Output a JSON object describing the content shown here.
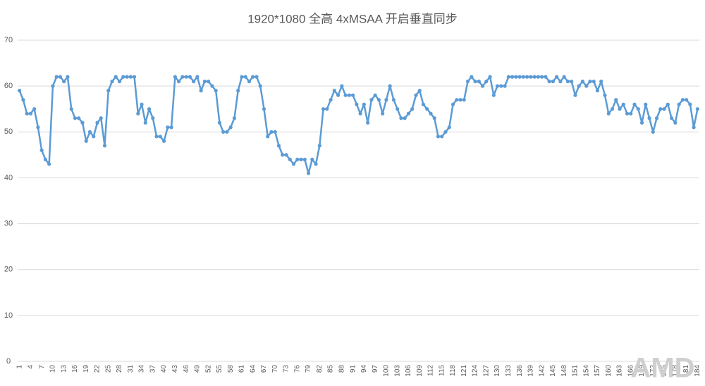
{
  "chart_data": {
    "type": "line",
    "title": "1920*1080 全高 4xMSAA 开启垂直同步",
    "watermark": "AMD",
    "categories": [
      1,
      null,
      null,
      4,
      null,
      null,
      7,
      null,
      null,
      10,
      null,
      null,
      13,
      null,
      null,
      16,
      null,
      null,
      19,
      null,
      null,
      22,
      null,
      null,
      25,
      null,
      null,
      28,
      null,
      null,
      31,
      null,
      null,
      34,
      null,
      null,
      37,
      null,
      null,
      40,
      null,
      null,
      43,
      null,
      null,
      46,
      null,
      null,
      49,
      null,
      null,
      52,
      null,
      null,
      55,
      null,
      null,
      58,
      null,
      null,
      61,
      null,
      null,
      64,
      null,
      null,
      67,
      null,
      null,
      70,
      null,
      null,
      73,
      null,
      null,
      76,
      null,
      null,
      79,
      null,
      null,
      82,
      null,
      null,
      85,
      null,
      null,
      88,
      null,
      null,
      91,
      null,
      null,
      94,
      null,
      null,
      97,
      null,
      null,
      100,
      null,
      null,
      103,
      null,
      null,
      106,
      null,
      null,
      109,
      null,
      null,
      112,
      null,
      null,
      115,
      null,
      null,
      118,
      null,
      null,
      121,
      null,
      null,
      124,
      null,
      null,
      127,
      null,
      null,
      130,
      null,
      null,
      133,
      null,
      null,
      136,
      null,
      null,
      139,
      null,
      null,
      142,
      null,
      null,
      145,
      null,
      null,
      148,
      null,
      null,
      151,
      null,
      null,
      154,
      null,
      null,
      157,
      null,
      null,
      160,
      null,
      null,
      163,
      null,
      null,
      166,
      null,
      null,
      169,
      null,
      null,
      172,
      null,
      null,
      175,
      null,
      null,
      178,
      null,
      null,
      181,
      null,
      null,
      184
    ],
    "values": [
      59,
      57,
      54,
      54,
      55,
      51,
      46,
      44,
      43,
      60,
      62,
      62,
      61,
      62,
      55,
      53,
      53,
      52,
      48,
      50,
      49,
      52,
      53,
      47,
      59,
      61,
      62,
      61,
      62,
      62,
      62,
      62,
      54,
      56,
      52,
      55,
      53,
      49,
      49,
      48,
      51,
      51,
      62,
      61,
      62,
      62,
      62,
      61,
      62,
      59,
      61,
      61,
      60,
      59,
      52,
      50,
      50,
      51,
      53,
      59,
      62,
      62,
      61,
      62,
      62,
      60,
      55,
      49,
      50,
      50,
      47,
      45,
      45,
      44,
      43,
      44,
      44,
      44,
      41,
      44,
      43,
      47,
      55,
      55,
      57,
      59,
      58,
      60,
      58,
      58,
      58,
      56,
      54,
      56,
      52,
      57,
      58,
      57,
      54,
      57,
      60,
      57,
      55,
      53,
      53,
      54,
      55,
      58,
      59,
      56,
      55,
      54,
      53,
      49,
      49,
      50,
      51,
      56,
      57,
      57,
      57,
      61,
      62,
      61,
      61,
      60,
      61,
      62,
      58,
      60,
      60,
      60,
      62,
      62,
      62,
      62,
      62,
      62,
      62,
      62,
      62,
      62,
      62,
      61,
      61,
      62,
      61,
      62,
      61,
      61,
      58,
      60,
      61,
      60,
      61,
      61,
      59,
      61,
      58,
      54,
      55,
      57,
      55,
      56,
      54,
      54,
      56,
      55,
      52,
      56,
      53,
      50,
      53,
      55,
      55,
      56,
      53,
      52,
      56,
      57,
      57,
      56,
      51,
      55
    ],
    "color": "#5b9bd5",
    "ylim": [
      0,
      70
    ],
    "yticks": [
      0,
      10,
      20,
      30,
      40,
      50,
      60,
      70
    ],
    "grid": true
  }
}
